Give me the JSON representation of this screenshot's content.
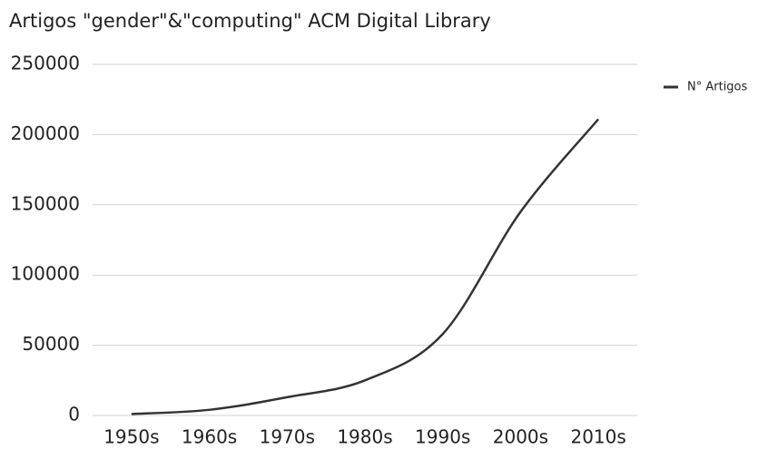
{
  "chart_data": {
    "type": "line",
    "title": "Artigos \"gender\"&\"computing\" ACM Digital Library",
    "categories": [
      "1950s",
      "1960s",
      "1970s",
      "1980s",
      "1990s",
      "2000s",
      "2010s"
    ],
    "series": [
      {
        "name": "N° Artigos",
        "color": "#333333",
        "values": [
          1000,
          4000,
          13000,
          25000,
          58000,
          145000,
          211000
        ]
      }
    ],
    "ylim": [
      0,
      250000
    ],
    "yticks": [
      0,
      50000,
      100000,
      150000,
      200000,
      250000
    ],
    "grid": true,
    "legend": "right"
  }
}
